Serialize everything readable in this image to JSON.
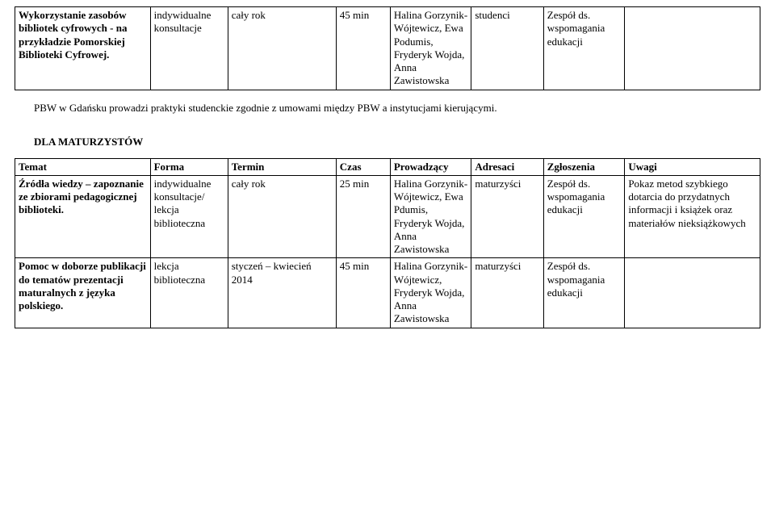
{
  "top_table": {
    "row": {
      "temat": "Wykorzystanie zasobów bibliotek cyfrowych - na przykładzie Pomorskiej Biblioteki Cyfrowej.",
      "forma": "indywidualne konsultacje",
      "termin": "cały rok",
      "czas": "45 min",
      "prowadzacy": "Halina Gorzynik-Wójtewicz, Ewa Podumis, Fryderyk Wojda, Anna Zawistowska",
      "adresaci": "studenci",
      "zgloszenia": "Zespół ds. wspomagania edukacji",
      "uwagi": ""
    }
  },
  "mid_paragraph": "PBW w Gdańsku prowadzi praktyki studenckie zgodnie z umowami między PBW a instytucjami kierującymi.",
  "section_heading": "DLA MATURZYSTÓW",
  "bottom_table": {
    "headers": {
      "temat": "Temat",
      "forma": "Forma",
      "termin": "Termin",
      "czas": "Czas",
      "prowadzacy": "Prowadzący",
      "adresaci": "Adresaci",
      "zgloszenia": "Zgłoszenia",
      "uwagi": "Uwagi"
    },
    "rows": [
      {
        "temat": "Źródła wiedzy – zapoznanie ze zbiorami pedagogicznej biblioteki.",
        "forma": "indywidualne konsultacje/ lekcja biblioteczna",
        "termin": "cały rok",
        "czas": "25 min",
        "prowadzacy": "Halina Gorzynik-Wójtewicz, Ewa Pdumis, Fryderyk Wojda, Anna Zawistowska",
        "adresaci": "maturzyści",
        "zgloszenia": "Zespół ds. wspomagania edukacji",
        "uwagi": "Pokaz metod szybkiego dotarcia do przydatnych informacji i książek oraz materiałów nieksiążkowych"
      },
      {
        "temat": "Pomoc w doborze publikacji do tematów prezentacji maturalnych z języka polskiego.",
        "forma": "lekcja biblioteczna",
        "termin": "styczeń – kwiecień 2014",
        "czas": "45 min",
        "prowadzacy": "Halina Gorzynik-Wójtewicz, Fryderyk Wojda, Anna Zawistowska",
        "adresaci": "maturzyści",
        "zgloszenia": "Zespół ds. wspomagania edukacji",
        "uwagi": ""
      }
    ]
  }
}
